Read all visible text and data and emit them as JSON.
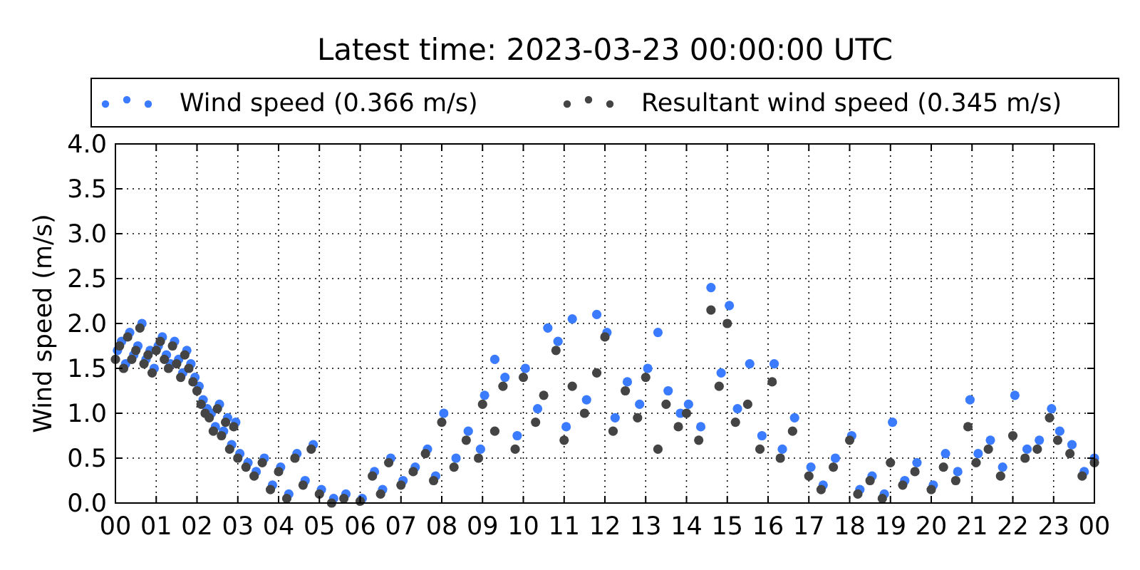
{
  "chart_data": {
    "type": "scatter",
    "title": "Latest time: 2023-03-23 00:00:00 UTC",
    "ylabel": "Wind speed (m/s)",
    "xlim": [
      0,
      24
    ],
    "xticks": [
      {
        "value": 0,
        "label": "00"
      },
      {
        "value": 1,
        "label": "01"
      },
      {
        "value": 2,
        "label": "02"
      },
      {
        "value": 3,
        "label": "03"
      },
      {
        "value": 4,
        "label": "04"
      },
      {
        "value": 5,
        "label": "05"
      },
      {
        "value": 6,
        "label": "06"
      },
      {
        "value": 7,
        "label": "07"
      },
      {
        "value": 8,
        "label": "08"
      },
      {
        "value": 9,
        "label": "09"
      },
      {
        "value": 10,
        "label": "10"
      },
      {
        "value": 11,
        "label": "11"
      },
      {
        "value": 12,
        "label": "12"
      },
      {
        "value": 13,
        "label": "13"
      },
      {
        "value": 14,
        "label": "14"
      },
      {
        "value": 15,
        "label": "15"
      },
      {
        "value": 16,
        "label": "16"
      },
      {
        "value": 17,
        "label": "17"
      },
      {
        "value": 18,
        "label": "18"
      },
      {
        "value": 19,
        "label": "19"
      },
      {
        "value": 20,
        "label": "20"
      },
      {
        "value": 21,
        "label": "21"
      },
      {
        "value": 22,
        "label": "22"
      },
      {
        "value": 23,
        "label": "23"
      },
      {
        "value": 24,
        "label": "00"
      }
    ],
    "ylim": [
      0,
      4
    ],
    "yticks": [
      {
        "value": 0,
        "label": "0.0"
      },
      {
        "value": 0.5,
        "label": "0.5"
      },
      {
        "value": 1,
        "label": "1.0"
      },
      {
        "value": 1.5,
        "label": "1.5"
      },
      {
        "value": 2,
        "label": "2.0"
      },
      {
        "value": 2.5,
        "label": "2.5"
      },
      {
        "value": 3,
        "label": "3.0"
      },
      {
        "value": 3.5,
        "label": "3.5"
      },
      {
        "value": 4,
        "label": "4.0"
      }
    ],
    "grid": true,
    "legend": "top",
    "marker": "circle",
    "series": [
      {
        "name": "Wind speed (0.366 m/s)",
        "color": "#3a7bff",
        "x": [
          0.05,
          0.15,
          0.25,
          0.35,
          0.45,
          0.55,
          0.65,
          0.75,
          0.85,
          0.95,
          1.05,
          1.15,
          1.25,
          1.35,
          1.45,
          1.55,
          1.65,
          1.75,
          1.85,
          1.95,
          2.05,
          2.15,
          2.25,
          2.35,
          2.45,
          2.55,
          2.65,
          2.75,
          2.85,
          2.95,
          3.05,
          3.25,
          3.45,
          3.65,
          3.85,
          4.05,
          4.25,
          4.45,
          4.65,
          4.85,
          5.05,
          5.35,
          5.65,
          6.05,
          6.35,
          6.55,
          6.75,
          7.05,
          7.35,
          7.65,
          7.85,
          8.05,
          8.35,
          8.65,
          8.95,
          9.05,
          9.3,
          9.55,
          9.85,
          10.05,
          10.35,
          10.6,
          10.85,
          11.05,
          11.2,
          11.55,
          11.8,
          12.05,
          12.25,
          12.55,
          12.85,
          13.05,
          13.3,
          13.55,
          13.85,
          14.05,
          14.35,
          14.6,
          14.85,
          15.05,
          15.25,
          15.55,
          15.85,
          16.15,
          16.35,
          16.65,
          17.05,
          17.35,
          17.65,
          18.05,
          18.25,
          18.55,
          18.85,
          19.05,
          19.35,
          19.65,
          20.05,
          20.35,
          20.65,
          20.95,
          21.15,
          21.45,
          21.75,
          22.05,
          22.35,
          22.65,
          22.95,
          23.15,
          23.45,
          23.75,
          24.0
        ],
        "values": [
          1.7,
          1.8,
          1.55,
          1.9,
          1.65,
          1.75,
          2.0,
          1.6,
          1.7,
          1.5,
          1.75,
          1.85,
          1.65,
          1.55,
          1.8,
          1.6,
          1.45,
          1.7,
          1.55,
          1.4,
          1.3,
          1.15,
          1.05,
          1.0,
          0.85,
          1.1,
          0.8,
          0.95,
          0.65,
          0.9,
          0.55,
          0.45,
          0.35,
          0.5,
          0.2,
          0.4,
          0.1,
          0.55,
          0.25,
          0.65,
          0.15,
          0.05,
          0.1,
          0.05,
          0.35,
          0.15,
          0.5,
          0.25,
          0.4,
          0.6,
          0.3,
          1.0,
          0.5,
          0.8,
          0.6,
          1.2,
          1.6,
          1.4,
          0.75,
          1.5,
          1.05,
          1.95,
          1.8,
          0.85,
          2.05,
          1.15,
          2.1,
          1.9,
          0.95,
          1.35,
          1.1,
          1.5,
          1.9,
          1.25,
          1.0,
          1.1,
          0.85,
          2.4,
          1.45,
          2.2,
          1.05,
          1.55,
          0.75,
          1.55,
          0.6,
          0.95,
          0.4,
          0.2,
          0.5,
          0.75,
          0.15,
          0.3,
          0.1,
          0.9,
          0.25,
          0.45,
          0.2,
          0.55,
          0.35,
          1.15,
          0.55,
          0.7,
          0.4,
          1.2,
          0.6,
          0.7,
          1.05,
          0.8,
          0.65,
          0.35,
          0.5
        ]
      },
      {
        "name": "Resultant wind speed (0.345 m/s)",
        "color": "#444444",
        "x": [
          0.0,
          0.1,
          0.2,
          0.3,
          0.4,
          0.5,
          0.6,
          0.7,
          0.8,
          0.9,
          1.0,
          1.1,
          1.2,
          1.3,
          1.4,
          1.5,
          1.6,
          1.7,
          1.8,
          1.9,
          2.0,
          2.1,
          2.2,
          2.3,
          2.4,
          2.5,
          2.6,
          2.7,
          2.8,
          2.9,
          3.0,
          3.2,
          3.4,
          3.6,
          3.8,
          4.0,
          4.2,
          4.4,
          4.6,
          4.8,
          5.0,
          5.3,
          5.6,
          6.0,
          6.3,
          6.5,
          6.7,
          7.0,
          7.3,
          7.6,
          7.8,
          8.0,
          8.3,
          8.6,
          8.9,
          9.0,
          9.3,
          9.5,
          9.8,
          10.0,
          10.3,
          10.5,
          10.8,
          11.0,
          11.2,
          11.5,
          11.8,
          12.0,
          12.2,
          12.5,
          12.8,
          13.0,
          13.3,
          13.5,
          13.8,
          14.0,
          14.3,
          14.6,
          14.8,
          15.0,
          15.2,
          15.5,
          15.8,
          16.1,
          16.3,
          16.6,
          17.0,
          17.3,
          17.6,
          18.0,
          18.2,
          18.5,
          18.8,
          19.0,
          19.3,
          19.6,
          20.0,
          20.3,
          20.6,
          20.9,
          21.1,
          21.4,
          21.7,
          22.0,
          22.3,
          22.6,
          22.9,
          23.1,
          23.4,
          23.7,
          24.0
        ],
        "values": [
          1.6,
          1.75,
          1.5,
          1.85,
          1.6,
          1.7,
          1.95,
          1.55,
          1.65,
          1.45,
          1.7,
          1.8,
          1.6,
          1.5,
          1.75,
          1.55,
          1.4,
          1.65,
          1.5,
          1.35,
          1.25,
          1.1,
          1.0,
          0.95,
          0.8,
          1.05,
          0.75,
          0.9,
          0.6,
          0.85,
          0.5,
          0.4,
          0.3,
          0.45,
          0.15,
          0.35,
          0.05,
          0.5,
          0.2,
          0.6,
          0.1,
          0.0,
          0.05,
          0.02,
          0.3,
          0.1,
          0.45,
          0.2,
          0.35,
          0.55,
          0.25,
          0.9,
          0.4,
          0.7,
          0.5,
          1.1,
          0.8,
          1.3,
          0.6,
          1.4,
          0.9,
          1.2,
          1.7,
          0.7,
          1.3,
          1.0,
          1.45,
          1.85,
          0.8,
          1.25,
          0.95,
          1.4,
          0.6,
          1.1,
          0.85,
          1.0,
          0.7,
          2.15,
          1.3,
          2.0,
          0.9,
          1.1,
          0.6,
          1.35,
          0.5,
          0.8,
          0.3,
          0.15,
          0.4,
          0.7,
          0.1,
          0.25,
          0.05,
          0.45,
          0.2,
          0.35,
          0.15,
          0.4,
          0.25,
          0.85,
          0.45,
          0.6,
          0.3,
          0.75,
          0.5,
          0.6,
          0.95,
          0.7,
          0.55,
          0.3,
          0.45
        ]
      }
    ]
  }
}
